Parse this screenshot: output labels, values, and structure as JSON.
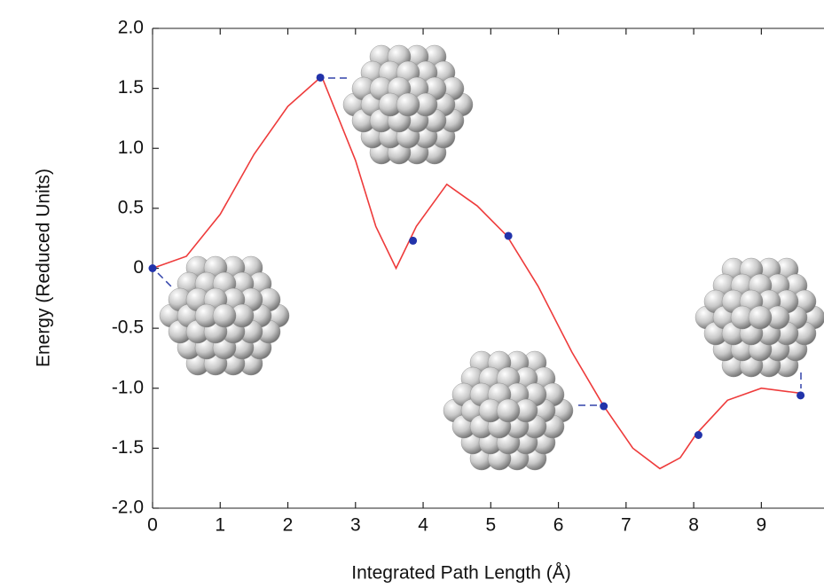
{
  "chart_data": {
    "type": "line",
    "y_label": "Energy (Reduced Units)",
    "x_label": "Integrated Path Length (Å)",
    "xlim": [
      0,
      9.9
    ],
    "ylim": [
      -2.0,
      2.0
    ],
    "xticks": [
      0,
      1,
      2,
      3,
      4,
      5,
      6,
      7,
      8,
      9
    ],
    "yticks": [
      {
        "value": 2.0,
        "label": "2.0"
      },
      1.5,
      {
        "value": 1.0,
        "label": "1.0"
      },
      0.5,
      0,
      -0.5,
      {
        "value": -1.0,
        "label": "-1.0"
      },
      -1.5,
      {
        "value": -2.0,
        "label": "-2.0"
      }
    ],
    "series": [
      {
        "style": "curve",
        "color": "#ee3b3b",
        "x": [
          0,
          0.5,
          1,
          1.5,
          2,
          2.5,
          3,
          3.3,
          3.6,
          3.9,
          4.35,
          4.8,
          5.24,
          5.7,
          6.2,
          6.66,
          7.1,
          7.5,
          7.8,
          8.04,
          8.5,
          9,
          9.56
        ],
        "values": [
          0,
          0.1,
          0.45,
          0.95,
          1.35,
          1.6,
          0.9,
          0.35,
          0.0,
          0.35,
          0.7,
          0.52,
          0.27,
          -0.15,
          -0.7,
          -1.14,
          -1.5,
          -1.67,
          -1.58,
          -1.38,
          -1.1,
          -1.0,
          -1.04
        ]
      },
      {
        "style": "points",
        "color": "#2233aa",
        "x": [
          0,
          2.48,
          3.85,
          5.26,
          6.67,
          8.07,
          9.58
        ],
        "values": [
          0,
          1.59,
          0.23,
          0.27,
          -1.15,
          -1.39,
          -1.06
        ]
      }
    ]
  }
}
